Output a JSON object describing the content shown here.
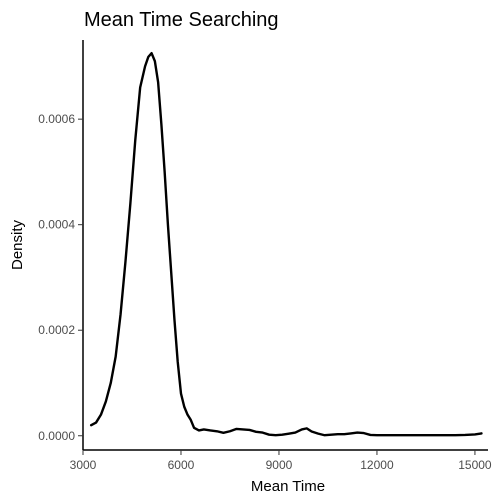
{
  "chart_data": {
    "type": "line",
    "title": "Mean Time Searching",
    "xlabel": "Mean Time",
    "ylabel": "Density",
    "xlim": [
      3000,
      15400
    ],
    "ylim": [
      -2.7e-05,
      0.00075
    ],
    "x_ticks": [
      3000,
      6000,
      9000,
      12000,
      15000
    ],
    "x_tick_labels": [
      "3000",
      "6000",
      "9000",
      "12000",
      "15000"
    ],
    "y_ticks": [
      0,
      0.0002,
      0.0004,
      0.0006
    ],
    "y_tick_labels": [
      "0.0000",
      "0.0002",
      "0.0004",
      "0.0006"
    ],
    "grid": false,
    "line_color": "#000000",
    "series": [
      {
        "x": [
          3250,
          3400,
          3550,
          3700,
          3850,
          4000,
          4150,
          4300,
          4450,
          4600,
          4750,
          4900,
          5000,
          5100,
          5200,
          5300,
          5400,
          5500,
          5600,
          5700,
          5800,
          5900,
          6000,
          6100,
          6200,
          6300,
          6400,
          6550,
          6700,
          6900,
          7100,
          7300,
          7500,
          7700,
          7900,
          8100,
          8300,
          8500,
          8700,
          8900,
          9100,
          9300,
          9500,
          9700,
          9850,
          10000,
          10200,
          10400,
          10600,
          10800,
          11000,
          11200,
          11400,
          11600,
          11800,
          12000,
          12300,
          12600,
          12900,
          13200,
          13500,
          13800,
          14100,
          14400,
          14700,
          15000,
          15200
        ],
        "y": [
          2e-05,
          2.5e-05,
          4e-05,
          6.5e-05,
          0.0001,
          0.00015,
          0.00023,
          0.00033,
          0.00044,
          0.00056,
          0.00066,
          0.0007,
          0.000718,
          0.000725,
          0.00071,
          0.00067,
          0.00059,
          0.0005,
          0.0004,
          0.00031,
          0.00022,
          0.00014,
          8e-05,
          5.5e-05,
          4e-05,
          3e-05,
          1.5e-05,
          1e-05,
          1.2e-05,
          1e-05,
          8.5e-06,
          5.5e-06,
          8.5e-06,
          1.3e-05,
          1.2e-05,
          1.1e-05,
          7.5e-06,
          6e-06,
          2e-06,
          1e-06,
          2e-06,
          4e-06,
          6e-06,
          1.2e-05,
          1.4e-05,
          8e-06,
          4e-06,
          1e-06,
          2e-06,
          3e-06,
          3e-06,
          4.5e-06,
          6e-06,
          5e-06,
          1.5e-06,
          1e-06,
          1e-06,
          1e-06,
          1e-06,
          1e-06,
          1e-06,
          1e-06,
          1e-06,
          1e-06,
          1.5e-06,
          2.5e-06,
          4.5e-06
        ]
      }
    ]
  }
}
